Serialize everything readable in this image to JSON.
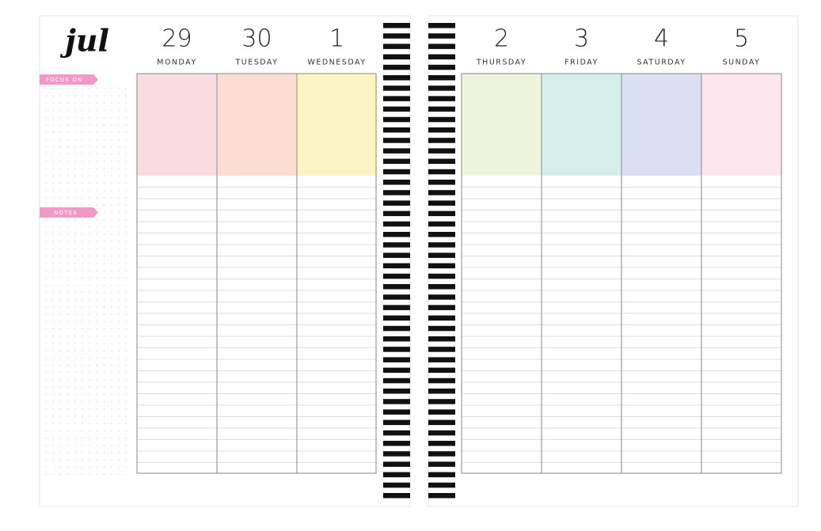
{
  "month": "jul",
  "focus_label": "FOCUS ON",
  "notes_label": "NOTES",
  "days": [
    {
      "date": "29",
      "name": "MONDAY",
      "color": "#fadbe0"
    },
    {
      "date": "30",
      "name": "TUESDAY",
      "color": "#fcddd3"
    },
    {
      "date": "1",
      "name": "WEDNESDAY",
      "color": "#fdf4c4"
    },
    {
      "date": "2",
      "name": "THURSDAY",
      "color": "#edf5df"
    },
    {
      "date": "3",
      "name": "FRIDAY",
      "color": "#d6eee9"
    },
    {
      "date": "4",
      "name": "SATURDAY",
      "color": "#dcdef3"
    },
    {
      "date": "5",
      "name": "SUNDAY",
      "color": "#fde6ed"
    }
  ]
}
